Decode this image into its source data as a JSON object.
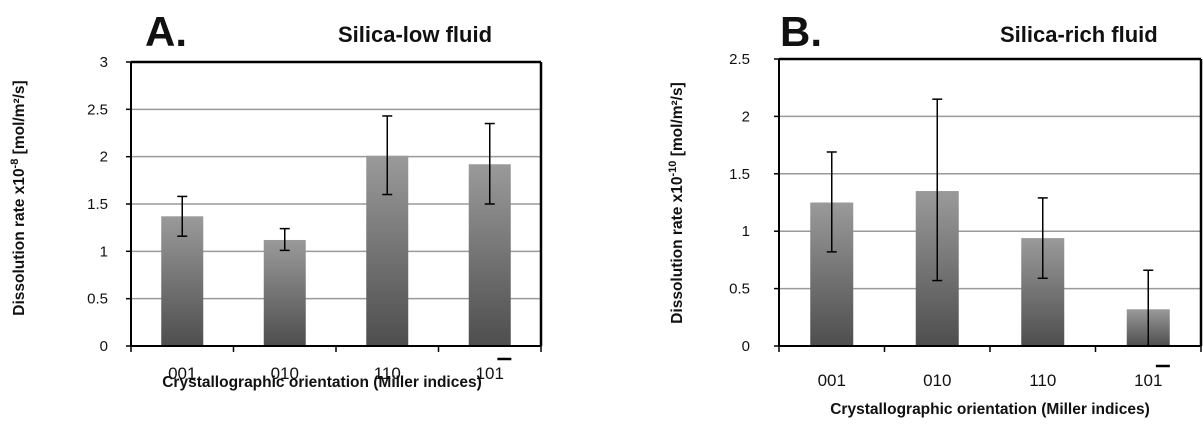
{
  "chart_data": [
    {
      "type": "bar",
      "panel_label": "A.",
      "title": "Silica-low fluid",
      "ylabel": "Dissolution rate x10",
      "ylabel_exponent": "-8",
      "ylabel_unit": "[mol/m²/s]",
      "xlabel": "Crystallographic orientation (Miller indices)",
      "categories": [
        "001",
        "010",
        "110",
        "101"
      ],
      "overlined_digit_last_category": "1",
      "values": [
        1.37,
        1.12,
        2.01,
        1.92
      ],
      "error_low": [
        1.16,
        1.01,
        1.6,
        1.5
      ],
      "error_high": [
        1.58,
        1.24,
        2.43,
        2.35
      ],
      "ylim": [
        0,
        3
      ],
      "yticks": [
        "0",
        "0.5",
        "1",
        "1.5",
        "2",
        "2.5",
        "3"
      ],
      "grid": true
    },
    {
      "type": "bar",
      "panel_label": "B.",
      "title": "Silica-rich fluid",
      "ylabel": "Dissolution rate x10",
      "ylabel_exponent": "-10",
      "ylabel_unit": "[mol/m²/s]",
      "xlabel": "Crystallographic orientation (Miller indices)",
      "categories": [
        "001",
        "010",
        "110",
        "101"
      ],
      "overlined_digit_last_category": "1",
      "values": [
        1.25,
        1.35,
        0.94,
        0.32
      ],
      "error_low": [
        0.82,
        0.57,
        0.59,
        0.0
      ],
      "error_high": [
        1.69,
        2.15,
        1.29,
        0.66
      ],
      "ylim": [
        0,
        2.5
      ],
      "yticks": [
        "0",
        "0.5",
        "1",
        "1.5",
        "2",
        "2.5"
      ],
      "grid": true
    }
  ]
}
